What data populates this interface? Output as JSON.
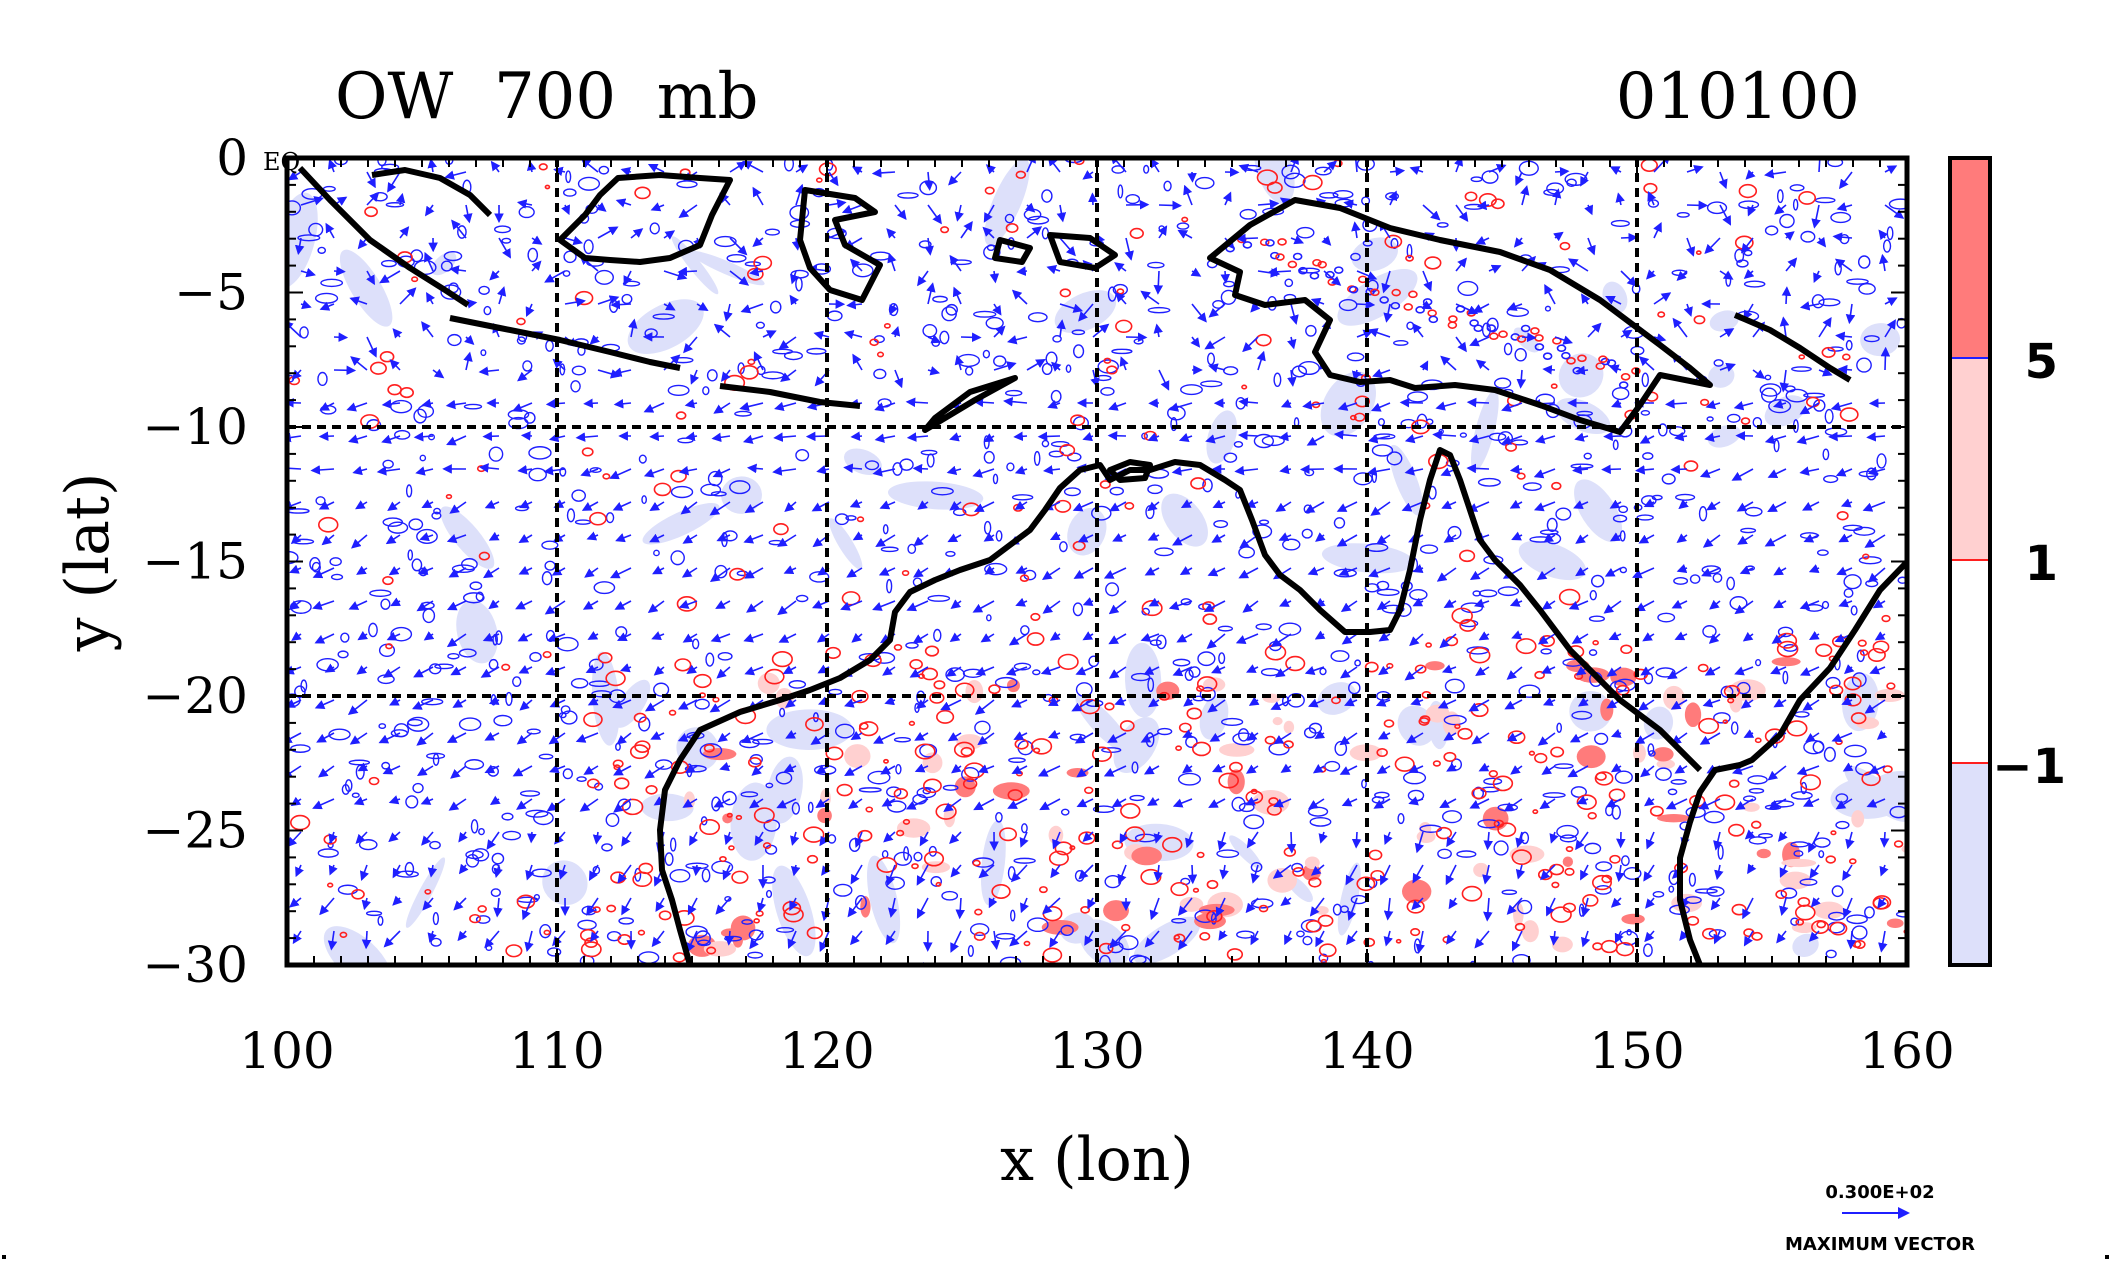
{
  "title_left": "OW  700  mb",
  "title_right": "010100",
  "eq_label": "EQ",
  "colors": {
    "land": "#000000",
    "vector": "#1f1fff",
    "contour_pos": "#ff1f1f",
    "fill_strong": "#ff7b7b",
    "fill_weak": "#ffd0d0",
    "fill_neg": "#dde0fa",
    "grid": "#000000"
  },
  "chart_data": {
    "type": "map",
    "xlabel": "x (lon)",
    "ylabel": "y (lat)",
    "xlim": [
      100,
      160
    ],
    "ylim": [
      -30,
      0
    ],
    "x_ticks": [
      "100",
      "110",
      "120",
      "130",
      "140",
      "150",
      "160"
    ],
    "y_ticks": [
      "0",
      "−5",
      "−10",
      "−15",
      "−20",
      "−25",
      "−30"
    ],
    "x_tick_values": [
      100,
      110,
      120,
      130,
      140,
      150,
      160
    ],
    "y_tick_values": [
      0,
      -5,
      -10,
      -15,
      -20,
      -25,
      -30
    ],
    "gridlines_lon": [
      110,
      120,
      130,
      140,
      150
    ],
    "gridlines_lat": [
      -10,
      -20
    ],
    "colorbar": {
      "labels": [
        "5",
        "1",
        "−1"
      ],
      "levels": [
        5,
        1,
        -1
      ],
      "segments": [
        "fill_strong",
        "fill_weak",
        "white",
        "fill_neg"
      ]
    },
    "vector_key": {
      "value": "0.300E+02",
      "caption": "MAXIMUM VECTOR"
    }
  }
}
